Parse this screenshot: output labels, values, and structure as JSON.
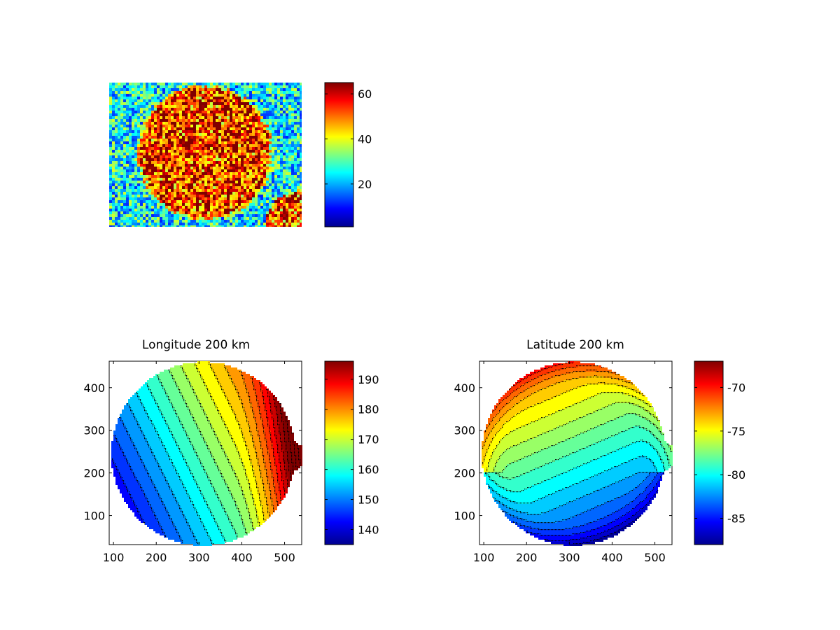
{
  "chart_data": [
    {
      "type": "heatmap",
      "title": "",
      "description": "noisy image with circular disk of high values",
      "colorbar": {
        "ticks": [
          20,
          40,
          60
        ],
        "range": [
          1,
          65
        ],
        "colormap": "jet"
      },
      "values_approx": {
        "background": 25,
        "disk": 58
      }
    },
    {
      "type": "heatmap",
      "title": "Longitude 200 km",
      "xlim": [
        90,
        540
      ],
      "ylim": [
        32,
        462
      ],
      "xticks": [
        100,
        200,
        300,
        400,
        500
      ],
      "yticks": [
        100,
        200,
        300,
        400
      ],
      "colorbar": {
        "ticks": [
          140,
          150,
          160,
          170,
          180,
          190
        ],
        "range": [
          135,
          196
        ],
        "colormap": "jet"
      },
      "contour_range": [
        135,
        196
      ]
    },
    {
      "type": "heatmap",
      "title": "Latitude 200 km",
      "xlim": [
        90,
        540
      ],
      "ylim": [
        32,
        462
      ],
      "xticks": [
        100,
        200,
        300,
        400,
        500
      ],
      "yticks": [
        100,
        200,
        300,
        400
      ],
      "colorbar": {
        "ticks": [
          -85,
          -80,
          -75,
          -70
        ],
        "range": [
          -88,
          -67
        ],
        "colormap": "jet"
      },
      "contour_range": [
        -88,
        -67
      ]
    }
  ]
}
